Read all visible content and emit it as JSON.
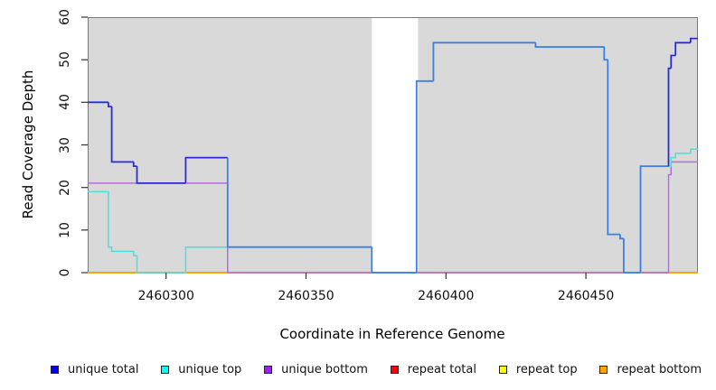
{
  "chart_data": {
    "type": "line",
    "style": "step",
    "xlabel": "Coordinate in Reference Genome",
    "ylabel": "Read Coverage Depth",
    "xlim": [
      2460272,
      2460490
    ],
    "ylim": [
      0,
      60
    ],
    "x_ticks": [
      2460300,
      2460350,
      2460400,
      2460450
    ],
    "y_ticks": [
      0,
      10,
      20,
      30,
      40,
      50,
      60
    ],
    "grid": false,
    "panel_bg": "#d9d9d9",
    "box_color": "#7a7a7a",
    "tick_color": "#333333",
    "gap_band": {
      "x0": 2460373.5,
      "x1": 2460390,
      "color": "#ffffff"
    },
    "series": [
      {
        "name": "repeat total",
        "line_color": "#dd2222",
        "points": [
          [
            2460272,
            0
          ]
        ],
        "end": 2460490
      },
      {
        "name": "repeat top",
        "line_color": "#f0e800",
        "points": [
          [
            2460272,
            0
          ]
        ],
        "end": 2460490
      },
      {
        "name": "repeat bottom",
        "line_color": "#ffa500",
        "points": [
          [
            2460272,
            0
          ]
        ],
        "end": 2460490
      },
      {
        "name": "unique bottom",
        "line_color": "#b46ee0",
        "points": [
          [
            2460272,
            21
          ],
          [
            2460322,
            0
          ],
          [
            2460479.5,
            23
          ],
          [
            2460480.4,
            26
          ]
        ],
        "end": 2460490
      },
      {
        "name": "unique top",
        "line_color": "#4fdede",
        "points": [
          [
            2460272,
            19
          ],
          [
            2460279.4,
            6
          ],
          [
            2460280.6,
            5
          ],
          [
            2460288.4,
            4
          ],
          [
            2460289.6,
            0
          ],
          [
            2460307,
            6
          ],
          [
            2460373.5,
            0
          ],
          [
            2460389.5,
            45
          ],
          [
            2460395.5,
            54
          ],
          [
            2460432,
            53
          ],
          [
            2460456.5,
            50
          ],
          [
            2460457.8,
            9
          ],
          [
            2460462.2,
            8
          ],
          [
            2460463.5,
            0
          ],
          [
            2460469.5,
            25
          ],
          [
            2460480.4,
            27
          ],
          [
            2460482,
            28
          ],
          [
            2460487.4,
            29
          ]
        ],
        "end": 2460490
      },
      {
        "name": "unique total",
        "line_color": "#2b2bdb",
        "blend_color": "#3f7fe6",
        "blend_with": "unique top",
        "points": [
          [
            2460272,
            40
          ],
          [
            2460279.4,
            39
          ],
          [
            2460280.6,
            26
          ],
          [
            2460288.4,
            25
          ],
          [
            2460289.6,
            21
          ],
          [
            2460307,
            27
          ],
          [
            2460322,
            6
          ],
          [
            2460373.5,
            0
          ],
          [
            2460389.5,
            45
          ],
          [
            2460395.5,
            54
          ],
          [
            2460432,
            53
          ],
          [
            2460456.5,
            50
          ],
          [
            2460457.8,
            9
          ],
          [
            2460462.2,
            8
          ],
          [
            2460463.5,
            0
          ],
          [
            2460469.5,
            25
          ],
          [
            2460479.5,
            48
          ],
          [
            2460480.4,
            51
          ],
          [
            2460482,
            54
          ],
          [
            2460487.4,
            55
          ]
        ],
        "end": 2460490
      }
    ]
  },
  "legend": {
    "items": [
      {
        "label": "unique total",
        "color": "#0000ff"
      },
      {
        "label": "unique top",
        "color": "#00ffff"
      },
      {
        "label": "unique bottom",
        "color": "#a020f0"
      },
      {
        "label": "repeat total",
        "color": "#ff0000"
      },
      {
        "label": "repeat top",
        "color": "#ffff00"
      },
      {
        "label": "repeat bottom",
        "color": "#ffa500"
      }
    ]
  }
}
